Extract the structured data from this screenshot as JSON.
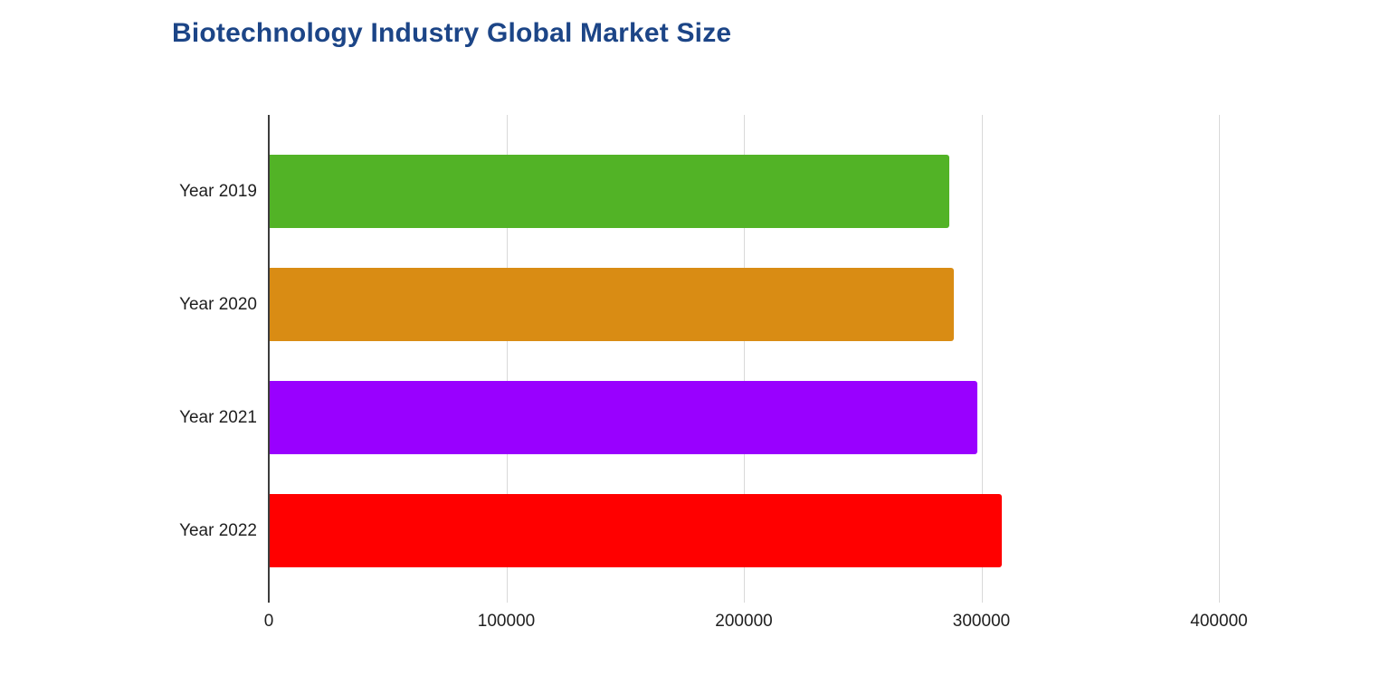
{
  "header": {
    "title": "Biotechnology Industry Global Market Size"
  },
  "chart_data": {
    "type": "bar",
    "orientation": "horizontal",
    "title": "Biotechnology Industry Global Market Size",
    "categories": [
      "Year 2019",
      "Year 2020",
      "Year 2021",
      "Year 2022"
    ],
    "values": [
      286000,
      288000,
      298000,
      308000
    ],
    "bar_colors": [
      "#52b326",
      "#d98c14",
      "#9900ff",
      "#ff0000"
    ],
    "x_ticks": [
      0,
      100000,
      200000,
      300000,
      400000
    ],
    "x_tick_labels": [
      "0",
      "100000",
      "200000",
      "300000",
      "400000"
    ],
    "xlim": [
      0,
      450000
    ],
    "xlabel": "",
    "ylabel": "",
    "grid": true,
    "legend": "none",
    "colors": {
      "title": "#1c4587",
      "axis": "#3c3c3c",
      "gridline": "#d9d9d9",
      "label": "#1f1f1f",
      "background": "#ffffff"
    }
  }
}
